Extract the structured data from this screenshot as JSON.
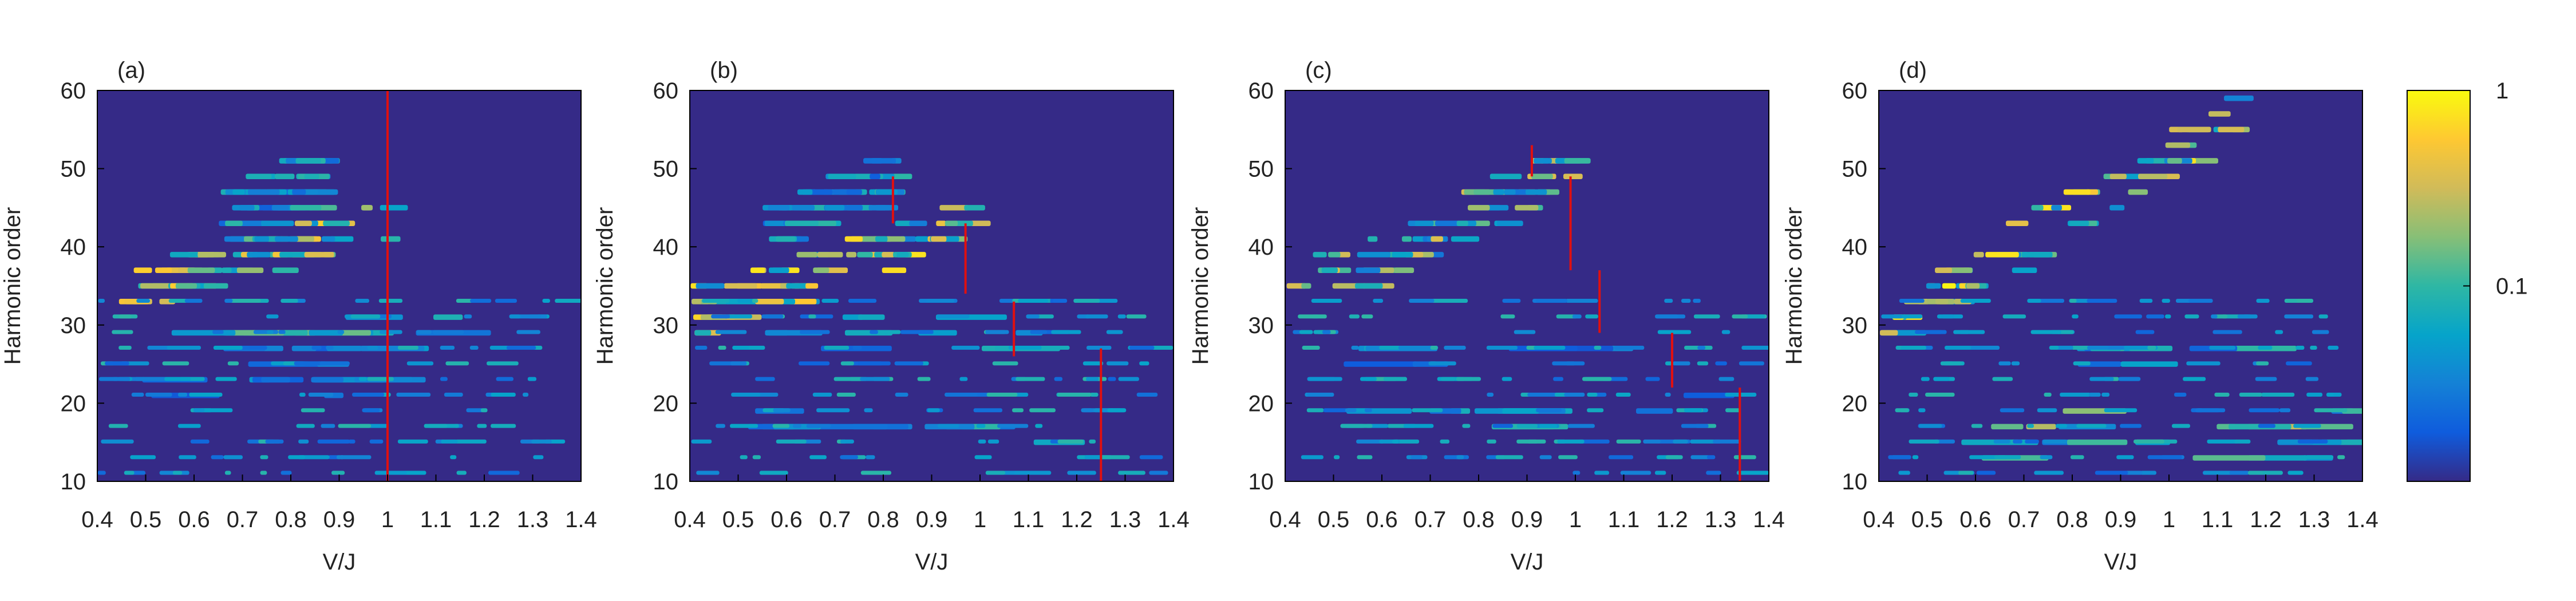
{
  "chart_data": [
    {
      "type": "heatmap",
      "panel_label": "(a)",
      "xlabel": "V/J",
      "ylabel": "Harmonic order",
      "xlim": [
        0.4,
        1.4
      ],
      "ylim": [
        10,
        60
      ],
      "xticks": [
        "0.4",
        "0.5",
        "0.6",
        "0.7",
        "0.8",
        "0.9",
        "1",
        "1.1",
        "1.2",
        "1.3",
        "1.4"
      ],
      "yticks": [
        "10",
        "20",
        "30",
        "40",
        "50",
        "60"
      ],
      "grid": false,
      "bands": [
        {
          "x": [
            0.42,
            1.0
          ],
          "y": [
            33,
            44
          ],
          "peak": 0.9
        },
        {
          "x": [
            0.65,
            0.85
          ],
          "y": [
            44,
            49
          ],
          "peak": 0.5
        },
        {
          "x": [
            0.55,
            1.1
          ],
          "y": [
            29,
            29
          ],
          "peak": 0.6
        },
        {
          "x": [
            0.5,
            1.0
          ],
          "y": [
            27,
            27
          ],
          "peak": 0.4
        },
        {
          "x": [
            0.45,
            1.0
          ],
          "y": [
            23,
            23
          ],
          "peak": 0.35
        }
      ],
      "cutoff_markers": [
        {
          "x": 1.0,
          "y": [
            10,
            60
          ]
        }
      ]
    },
    {
      "type": "heatmap",
      "panel_label": "(b)",
      "xlabel": "V/J",
      "ylabel": "Harmonic order",
      "xlim": [
        0.4,
        1.4
      ],
      "ylim": [
        10,
        60
      ],
      "xticks": [
        "0.4",
        "0.5",
        "0.6",
        "0.7",
        "0.8",
        "0.9",
        "1",
        "1.1",
        "1.2",
        "1.3",
        "1.4"
      ],
      "yticks": [
        "10",
        "20",
        "30",
        "40",
        "50",
        "60"
      ],
      "grid": false,
      "bands": [
        {
          "x": [
            0.4,
            0.97
          ],
          "y": [
            31,
            43
          ],
          "peak": 0.95
        },
        {
          "x": [
            0.55,
            0.82
          ],
          "y": [
            42,
            49
          ],
          "peak": 0.5
        },
        {
          "x": [
            0.45,
            1.1
          ],
          "y": [
            29,
            29
          ],
          "peak": 0.5
        },
        {
          "x": [
            0.45,
            1.25
          ],
          "y": [
            17,
            17
          ],
          "peak": 0.6
        }
      ],
      "cutoff_markers": [
        {
          "x": 0.82,
          "y": [
            43,
            49
          ]
        },
        {
          "x": 0.97,
          "y": [
            34,
            43
          ]
        },
        {
          "x": 1.07,
          "y": [
            26,
            33
          ]
        },
        {
          "x": 1.25,
          "y": [
            10,
            27
          ]
        }
      ]
    },
    {
      "type": "heatmap",
      "panel_label": "(c)",
      "xlabel": "V/J",
      "ylabel": "Harmonic order",
      "xlim": [
        0.4,
        1.4
      ],
      "ylim": [
        10,
        60
      ],
      "xticks": [
        "0.4",
        "0.5",
        "0.6",
        "0.7",
        "0.8",
        "0.9",
        "1",
        "1.1",
        "1.2",
        "1.3",
        "1.4"
      ],
      "yticks": [
        "10",
        "20",
        "30",
        "40",
        "50",
        "60"
      ],
      "grid": false,
      "bands": [
        {
          "x": [
            0.4,
            0.98
          ],
          "y": [
            33,
            50
          ],
          "peak": 0.8
        },
        {
          "x": [
            0.45,
            1.3
          ],
          "y": [
            19,
            19
          ],
          "peak": 0.5
        },
        {
          "x": [
            0.5,
            1.05
          ],
          "y": [
            27,
            27
          ],
          "peak": 0.45
        }
      ],
      "cutoff_markers": [
        {
          "x": 0.91,
          "y": [
            49,
            53
          ]
        },
        {
          "x": 0.99,
          "y": [
            37,
            49
          ]
        },
        {
          "x": 1.05,
          "y": [
            29,
            37
          ]
        },
        {
          "x": 1.2,
          "y": [
            22,
            29
          ]
        },
        {
          "x": 1.34,
          "y": [
            10,
            22
          ]
        }
      ]
    },
    {
      "type": "heatmap",
      "panel_label": "(d)",
      "xlabel": "V/J",
      "ylabel": "Harmonic order",
      "xlim": [
        0.4,
        1.4
      ],
      "ylim": [
        10,
        60
      ],
      "xticks": [
        "0.4",
        "0.5",
        "0.6",
        "0.7",
        "0.8",
        "0.9",
        "1",
        "1.1",
        "1.2",
        "1.3",
        "1.4"
      ],
      "yticks": [
        "10",
        "20",
        "30",
        "40",
        "50",
        "60"
      ],
      "grid": false,
      "bands": [
        {
          "x": [
            0.4,
            1.15
          ],
          "y": [
            30,
            57
          ],
          "peak": 1.0
        },
        {
          "x": [
            0.6,
            1.4
          ],
          "y": [
            17,
            17
          ],
          "peak": 0.85
        },
        {
          "x": [
            0.55,
            1.4
          ],
          "y": [
            15,
            15
          ],
          "peak": 0.6
        },
        {
          "x": [
            0.8,
            1.15
          ],
          "y": [
            27,
            27
          ],
          "peak": 0.5
        }
      ],
      "cutoff_markers": []
    }
  ],
  "colorbar": {
    "scale": "log",
    "range": [
      0.01,
      1
    ],
    "tick_labels": [
      "1",
      "0.1"
    ],
    "tick_values": [
      1,
      0.1
    ],
    "colors": [
      "#352a87",
      "#0f5cdd",
      "#1481d6",
      "#06a4ca",
      "#2eb7a4",
      "#87bf77",
      "#d1bb59",
      "#fec832",
      "#f9fb0e"
    ]
  },
  "colors": {
    "background": "#352a87",
    "cutoff_marker": "#e01010",
    "axis": "#000000"
  }
}
